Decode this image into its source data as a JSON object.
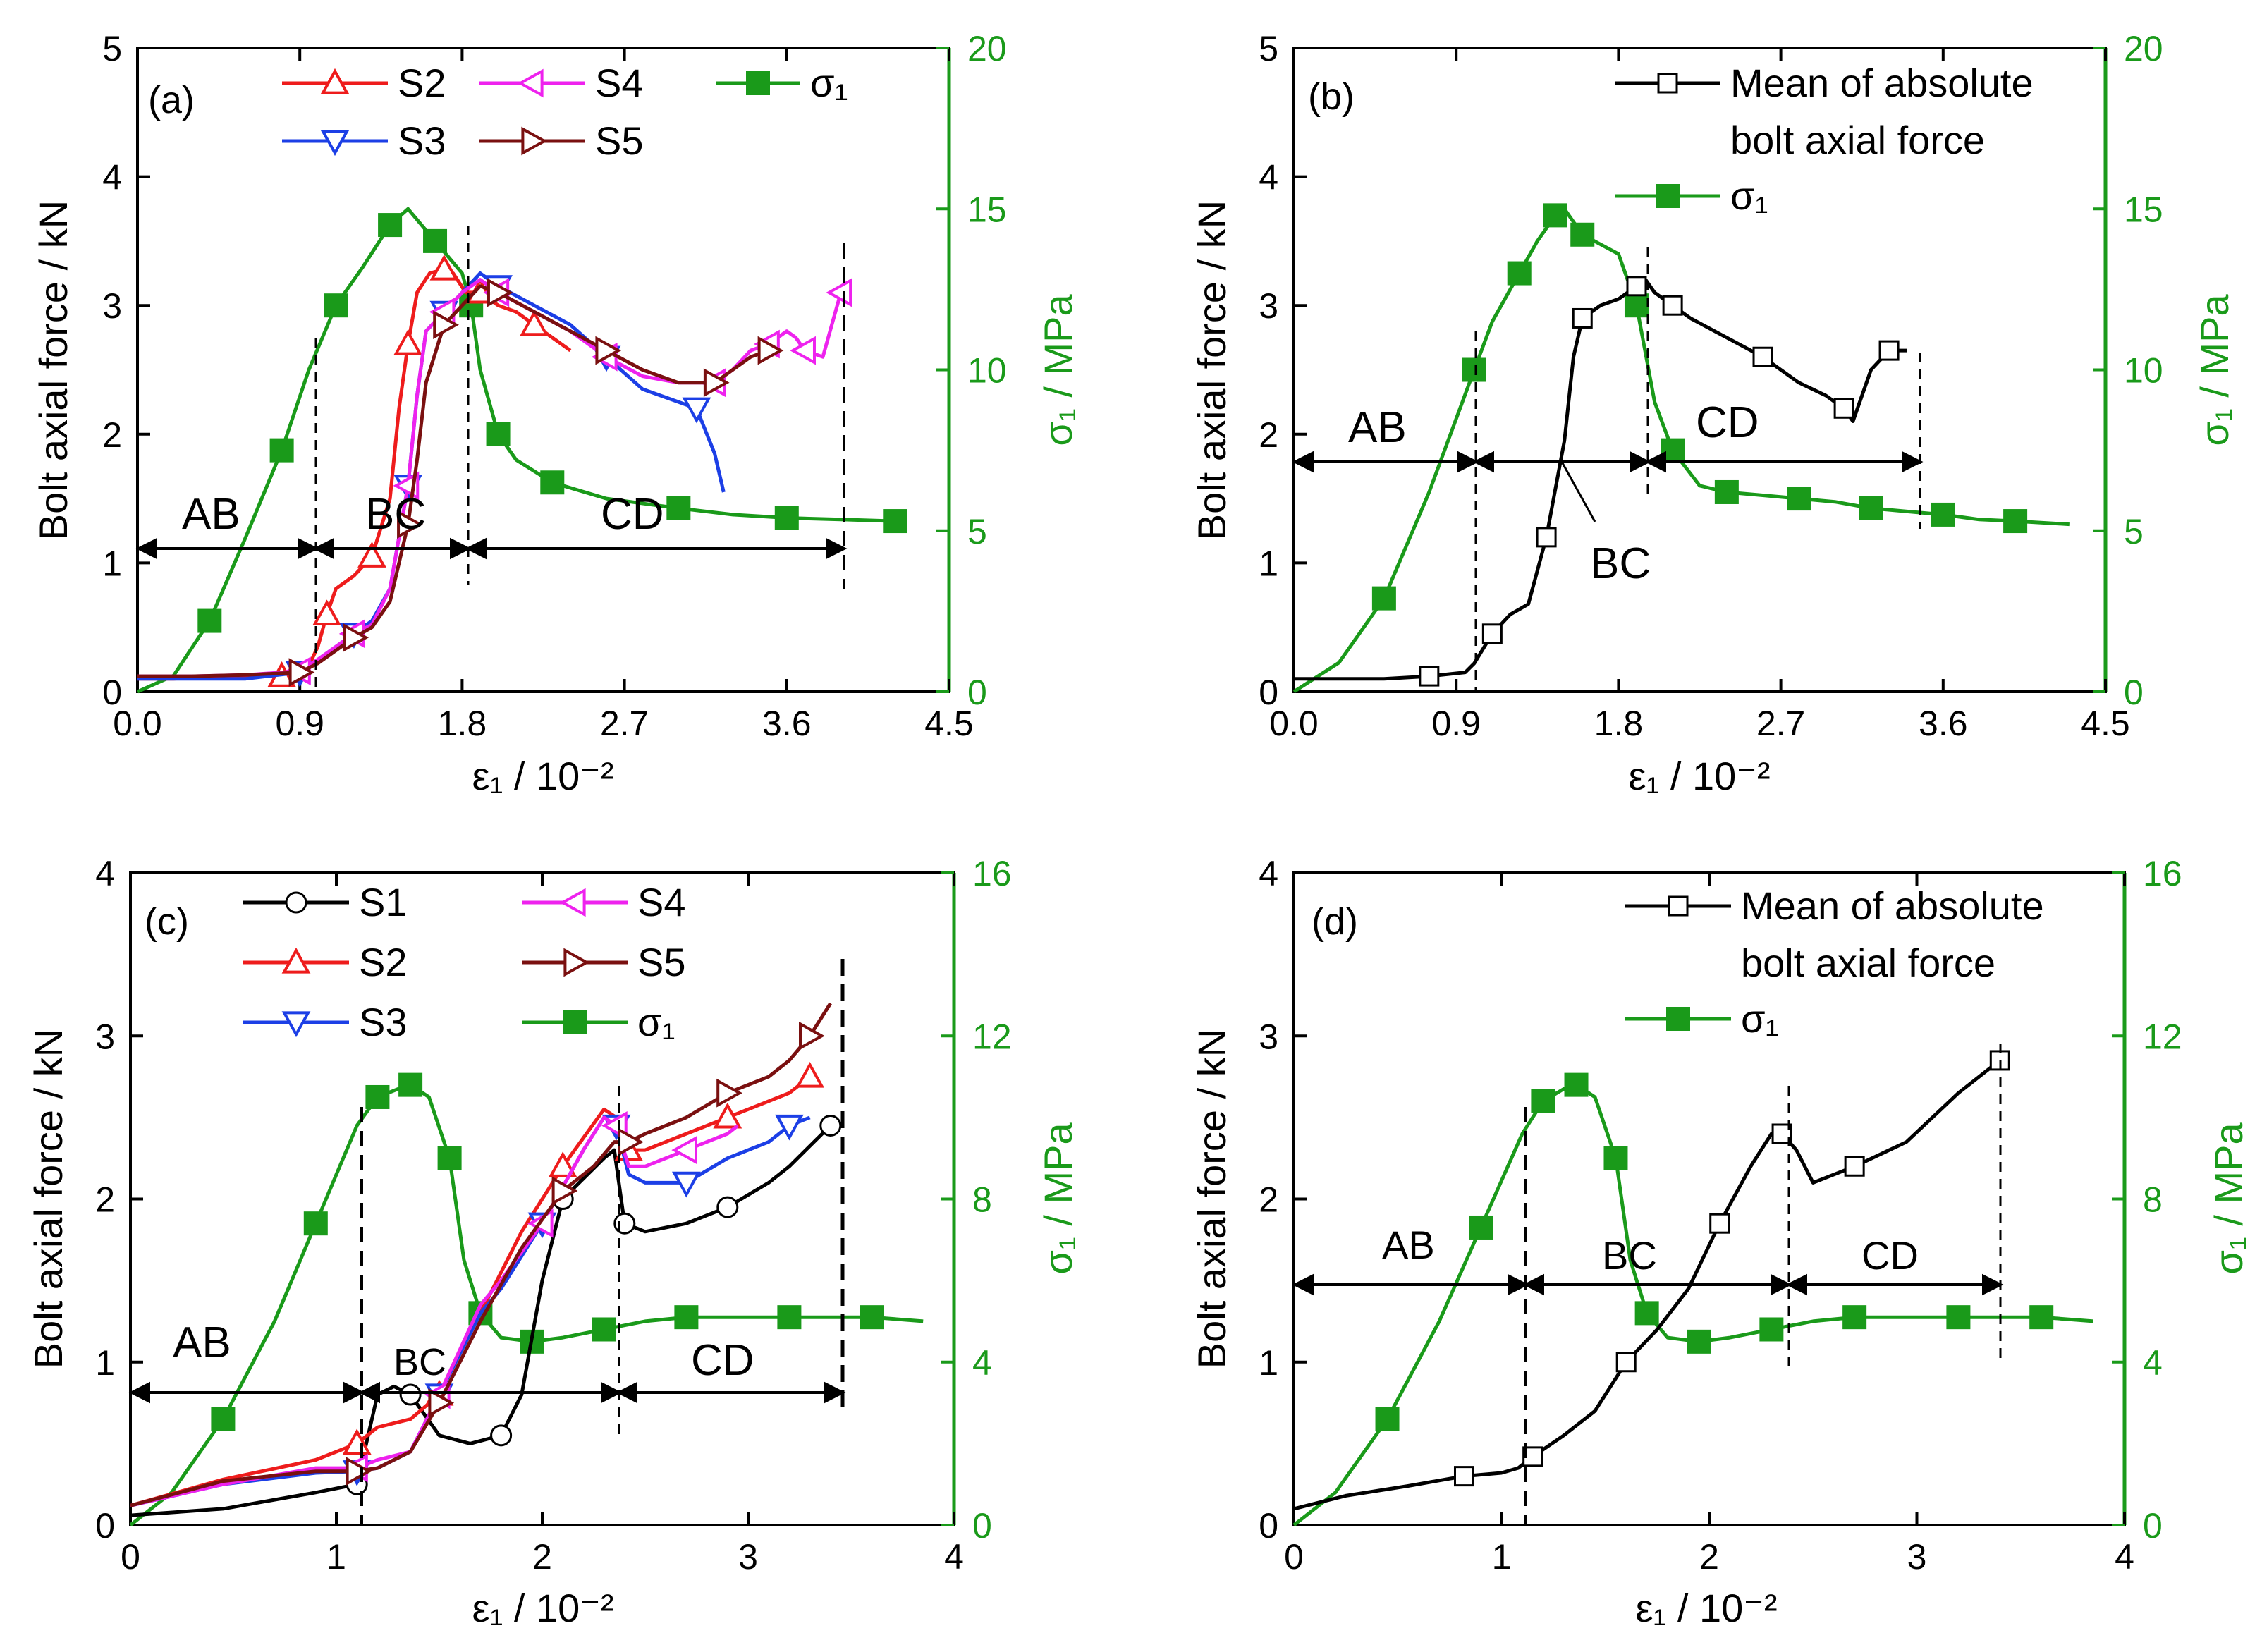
{
  "colors": {
    "S1": "#000000",
    "S2": "#ee1c1c",
    "S3": "#1c3fe6",
    "S4": "#ee22ee",
    "S5": "#7a1010",
    "sigma": "#1a9a1a",
    "mean": "#000000",
    "axis": "#000000",
    "right_axis": "#1a9a1a"
  },
  "chart_data": [
    {
      "id": "a",
      "type": "line",
      "panel_label": "(a)",
      "xlabel": "ε₁ / 10⁻²",
      "ylabel": "Bolt axial force / kN",
      "y2label": "σ₁ / MPa",
      "xlim": [
        0,
        4.5
      ],
      "ylim": [
        0,
        5
      ],
      "y2lim": [
        0,
        20
      ],
      "xticks": [
        "0.0",
        "0.9",
        "1.8",
        "2.7",
        "3.6",
        "4.5"
      ],
      "yticks": [
        "0",
        "1",
        "2",
        "3",
        "4",
        "5"
      ],
      "y2ticks": [
        "0",
        "5",
        "10",
        "15",
        "20"
      ],
      "legend": [
        "S2",
        "S3",
        "S4",
        "S5",
        "σ₁"
      ],
      "series": [
        {
          "name": "S2",
          "axis": "left",
          "marker": "triangle-up",
          "x": [
            0,
            0.2,
            0.5,
            0.8,
            0.95,
            1.0,
            1.05,
            1.1,
            1.2,
            1.3,
            1.4,
            1.45,
            1.5,
            1.55,
            1.62,
            1.7,
            1.75,
            1.82,
            1.9,
            2.0,
            2.1,
            2.2,
            2.3,
            2.4
          ],
          "y": [
            0.1,
            0.1,
            0.12,
            0.12,
            0.2,
            0.35,
            0.6,
            0.8,
            0.9,
            1.05,
            1.5,
            2.2,
            2.7,
            3.1,
            3.25,
            3.28,
            3.25,
            3.1,
            3.1,
            3.0,
            2.95,
            2.85,
            2.75,
            2.65
          ]
        },
        {
          "name": "S3",
          "axis": "left",
          "marker": "triangle-down",
          "x": [
            0,
            0.3,
            0.6,
            0.9,
            1.0,
            1.1,
            1.2,
            1.3,
            1.4,
            1.5,
            1.55,
            1.6,
            1.7,
            1.8,
            1.9,
            2.0,
            2.2,
            2.4,
            2.6,
            2.8,
            3.0,
            3.1,
            3.2,
            3.25
          ],
          "y": [
            0.1,
            0.1,
            0.1,
            0.15,
            0.25,
            0.35,
            0.45,
            0.55,
            0.8,
            1.6,
            2.3,
            2.8,
            2.95,
            3.1,
            3.25,
            3.15,
            3.0,
            2.85,
            2.6,
            2.35,
            2.25,
            2.2,
            1.85,
            1.55
          ]
        },
        {
          "name": "S4",
          "axis": "left",
          "marker": "triangle-left",
          "x": [
            0,
            0.3,
            0.6,
            0.9,
            1.0,
            1.1,
            1.2,
            1.3,
            1.4,
            1.5,
            1.55,
            1.6,
            1.7,
            1.8,
            1.9,
            2.0,
            2.2,
            2.4,
            2.6,
            2.8,
            3.0,
            3.2,
            3.3,
            3.4,
            3.5,
            3.6,
            3.65,
            3.7,
            3.8,
            3.85,
            3.9
          ],
          "y": [
            0.12,
            0.12,
            0.13,
            0.16,
            0.25,
            0.35,
            0.45,
            0.52,
            0.8,
            1.6,
            2.3,
            2.8,
            2.95,
            3.1,
            3.2,
            3.1,
            2.95,
            2.8,
            2.6,
            2.45,
            2.4,
            2.4,
            2.5,
            2.65,
            2.7,
            2.8,
            2.75,
            2.65,
            2.6,
            2.85,
            3.1
          ]
        },
        {
          "name": "S5",
          "axis": "left",
          "marker": "triangle-right",
          "x": [
            0,
            0.3,
            0.6,
            0.9,
            1.0,
            1.1,
            1.2,
            1.3,
            1.4,
            1.5,
            1.55,
            1.6,
            1.7,
            1.8,
            1.9,
            2.0,
            2.2,
            2.4,
            2.6,
            2.8,
            3.0,
            3.2,
            3.3,
            3.4,
            3.5
          ],
          "y": [
            0.12,
            0.12,
            0.13,
            0.15,
            0.22,
            0.32,
            0.42,
            0.5,
            0.7,
            1.3,
            1.8,
            2.4,
            2.85,
            3.0,
            3.15,
            3.1,
            2.95,
            2.8,
            2.65,
            2.5,
            2.4,
            2.4,
            2.5,
            2.6,
            2.65
          ]
        },
        {
          "name": "σ₁",
          "axis": "right",
          "marker": "square",
          "x": [
            0,
            0.2,
            0.4,
            0.6,
            0.8,
            0.95,
            1.1,
            1.25,
            1.4,
            1.5,
            1.65,
            1.8,
            1.85,
            1.9,
            2.0,
            2.1,
            2.3,
            2.6,
            3.0,
            3.3,
            3.6,
            3.9,
            4.2
          ],
          "y": [
            0,
            0.5,
            2.2,
            4.8,
            7.5,
            10,
            12,
            13.2,
            14.5,
            15,
            14,
            13,
            12,
            10,
            8,
            7.2,
            6.5,
            6.0,
            5.7,
            5.5,
            5.4,
            5.35,
            5.3
          ]
        }
      ],
      "annotations": [
        "AB",
        "BC",
        "CD"
      ]
    },
    {
      "id": "b",
      "type": "line",
      "panel_label": "(b)",
      "xlabel": "ε₁ / 10⁻²",
      "ylabel": "Bolt axial force / kN",
      "y2label": "σ₁ / MPa",
      "xlim": [
        0,
        4.5
      ],
      "ylim": [
        0,
        5
      ],
      "y2lim": [
        0,
        20
      ],
      "xticks": [
        "0.0",
        "0.9",
        "1.8",
        "2.7",
        "3.6",
        "4.5"
      ],
      "yticks": [
        "0",
        "1",
        "2",
        "3",
        "4",
        "5"
      ],
      "y2ticks": [
        "0",
        "5",
        "10",
        "15",
        "20"
      ],
      "legend": [
        "Mean of absolute bolt axial force",
        "σ₁"
      ],
      "legend_lines": [
        "Mean of absolute",
        "bolt axial force"
      ],
      "series": [
        {
          "name": "Mean",
          "axis": "left",
          "marker": "open-square",
          "x": [
            0,
            0.25,
            0.5,
            0.75,
            0.95,
            1.0,
            1.1,
            1.2,
            1.3,
            1.4,
            1.5,
            1.55,
            1.6,
            1.7,
            1.8,
            1.9,
            1.95,
            2.0,
            2.1,
            2.2,
            2.4,
            2.6,
            2.8,
            2.95,
            3.05,
            3.1,
            3.2,
            3.3,
            3.4
          ],
          "y": [
            0.1,
            0.1,
            0.1,
            0.12,
            0.15,
            0.22,
            0.45,
            0.6,
            0.68,
            1.2,
            1.95,
            2.6,
            2.9,
            3.0,
            3.05,
            3.15,
            3.2,
            3.1,
            3.0,
            2.9,
            2.75,
            2.6,
            2.4,
            2.3,
            2.2,
            2.1,
            2.5,
            2.65,
            2.65
          ]
        },
        {
          "name": "σ₁",
          "axis": "right",
          "marker": "square",
          "x": [
            0,
            0.25,
            0.5,
            0.75,
            1.0,
            1.1,
            1.25,
            1.35,
            1.45,
            1.5,
            1.6,
            1.8,
            1.9,
            2.0,
            2.1,
            2.25,
            2.4,
            2.6,
            2.8,
            3.0,
            3.2,
            3.4,
            3.6,
            3.8,
            4.0,
            4.3
          ],
          "y": [
            0,
            0.9,
            2.9,
            6.2,
            10,
            11.5,
            13,
            14,
            14.8,
            15,
            14.2,
            13.6,
            12,
            9,
            7.5,
            6.4,
            6.2,
            6.1,
            6.0,
            5.9,
            5.7,
            5.6,
            5.5,
            5.35,
            5.3,
            5.2
          ]
        }
      ],
      "annotations": [
        "AB",
        "BC",
        "CD"
      ]
    },
    {
      "id": "c",
      "type": "line",
      "panel_label": "(c)",
      "xlabel": "ε₁ / 10⁻²",
      "ylabel": "Bolt axial force / kN",
      "y2label": "σ₁ / MPa",
      "xlim": [
        0,
        4
      ],
      "ylim": [
        0,
        4
      ],
      "y2lim": [
        0,
        16
      ],
      "xticks": [
        "0",
        "1",
        "2",
        "3",
        "4"
      ],
      "yticks": [
        "0",
        "1",
        "2",
        "3",
        "4"
      ],
      "y2ticks": [
        "0",
        "4",
        "8",
        "12",
        "16"
      ],
      "legend": [
        "S1",
        "S2",
        "S3",
        "S4",
        "S5",
        "σ₁"
      ],
      "series": [
        {
          "name": "S1",
          "axis": "left",
          "marker": "circle",
          "x": [
            0,
            0.45,
            0.9,
            1.1,
            1.2,
            1.28,
            1.36,
            1.5,
            1.65,
            1.8,
            1.9,
            2.0,
            2.1,
            2.3,
            2.35,
            2.4,
            2.5,
            2.7,
            2.9,
            3.1,
            3.2,
            3.4
          ],
          "y": [
            0.06,
            0.1,
            0.2,
            0.25,
            0.8,
            0.85,
            0.8,
            0.55,
            0.5,
            0.55,
            0.8,
            1.5,
            2.0,
            2.25,
            2.3,
            1.85,
            1.8,
            1.85,
            1.95,
            2.1,
            2.2,
            2.45
          ]
        },
        {
          "name": "S2",
          "axis": "left",
          "marker": "triangle-up",
          "x": [
            0,
            0.45,
            0.9,
            1.1,
            1.2,
            1.36,
            1.5,
            1.7,
            1.9,
            2.1,
            2.3,
            2.36,
            2.42,
            2.5,
            2.7,
            2.9,
            3.1,
            3.2,
            3.3
          ],
          "y": [
            0.12,
            0.28,
            0.4,
            0.5,
            0.6,
            0.65,
            0.8,
            1.3,
            1.8,
            2.2,
            2.55,
            2.5,
            2.3,
            2.3,
            2.4,
            2.5,
            2.6,
            2.65,
            2.75
          ]
        },
        {
          "name": "S3",
          "axis": "left",
          "marker": "triangle-down",
          "x": [
            0,
            0.45,
            0.9,
            1.1,
            1.2,
            1.36,
            1.5,
            1.7,
            1.8,
            2.0,
            2.2,
            2.3,
            2.36,
            2.42,
            2.5,
            2.7,
            2.9,
            3.1,
            3.2,
            3.3
          ],
          "y": [
            0.12,
            0.25,
            0.32,
            0.33,
            0.35,
            0.45,
            0.8,
            1.3,
            1.45,
            1.85,
            2.3,
            2.5,
            2.45,
            2.15,
            2.1,
            2.1,
            2.25,
            2.35,
            2.45,
            2.5
          ]
        },
        {
          "name": "S4",
          "axis": "left",
          "marker": "triangle-left",
          "x": [
            0,
            0.45,
            0.9,
            1.1,
            1.2,
            1.36,
            1.5,
            1.7,
            1.8,
            2.0,
            2.2,
            2.3,
            2.36,
            2.42,
            2.5,
            2.7,
            2.9,
            2.95
          ],
          "y": [
            0.12,
            0.25,
            0.35,
            0.35,
            0.4,
            0.45,
            0.8,
            1.35,
            1.5,
            1.85,
            2.3,
            2.5,
            2.45,
            2.2,
            2.2,
            2.3,
            2.4,
            2.45
          ]
        },
        {
          "name": "S5",
          "axis": "left",
          "marker": "triangle-right",
          "x": [
            0,
            0.45,
            0.9,
            1.1,
            1.2,
            1.36,
            1.5,
            1.7,
            1.9,
            2.1,
            2.25,
            2.35,
            2.42,
            2.5,
            2.7,
            2.9,
            3.1,
            3.2,
            3.3,
            3.4
          ],
          "y": [
            0.12,
            0.27,
            0.33,
            0.33,
            0.35,
            0.45,
            0.75,
            1.25,
            1.7,
            2.05,
            2.2,
            2.35,
            2.35,
            2.4,
            2.5,
            2.65,
            2.75,
            2.85,
            3.0,
            3.2
          ]
        },
        {
          "name": "σ₁",
          "axis": "right",
          "marker": "square",
          "x": [
            0,
            0.2,
            0.45,
            0.7,
            0.9,
            1.1,
            1.2,
            1.3,
            1.36,
            1.45,
            1.55,
            1.62,
            1.7,
            1.8,
            1.95,
            2.1,
            2.3,
            2.5,
            2.7,
            3.0,
            3.2,
            3.4,
            3.6,
            3.85
          ],
          "y": [
            0,
            0.8,
            2.6,
            5.0,
            7.4,
            9.8,
            10.5,
            10.7,
            10.8,
            10.5,
            9.0,
            6.5,
            5.2,
            4.6,
            4.5,
            4.6,
            4.8,
            5.0,
            5.1,
            5.1,
            5.1,
            5.1,
            5.1,
            5.0
          ]
        }
      ],
      "annotations": [
        "AB",
        "BC",
        "CD"
      ]
    },
    {
      "id": "d",
      "type": "line",
      "panel_label": "(d)",
      "xlabel": "ε₁ / 10⁻²",
      "ylabel": "Bolt axial force / kN",
      "y2label": "σ₁ / MPa",
      "xlim": [
        0,
        4
      ],
      "ylim": [
        0,
        4
      ],
      "y2lim": [
        0,
        16
      ],
      "xticks": [
        "0",
        "1",
        "2",
        "3",
        "4"
      ],
      "yticks": [
        "0",
        "1",
        "2",
        "3",
        "4"
      ],
      "y2ticks": [
        "0",
        "4",
        "8",
        "12",
        "16"
      ],
      "legend": [
        "Mean of absolute bolt axial force",
        "σ₁"
      ],
      "legend_lines": [
        "Mean of absolute",
        "bolt axial force"
      ],
      "series": [
        {
          "name": "Mean",
          "axis": "left",
          "marker": "open-square",
          "x": [
            0,
            0.25,
            0.55,
            0.82,
            1.0,
            1.08,
            1.15,
            1.3,
            1.45,
            1.6,
            1.75,
            1.9,
            2.05,
            2.2,
            2.3,
            2.35,
            2.42,
            2.5,
            2.7,
            2.95,
            3.2,
            3.4
          ],
          "y": [
            0.1,
            0.18,
            0.24,
            0.3,
            0.32,
            0.35,
            0.42,
            0.55,
            0.7,
            1.0,
            1.2,
            1.45,
            1.85,
            2.2,
            2.4,
            2.4,
            2.3,
            2.1,
            2.2,
            2.35,
            2.65,
            2.85
          ]
        },
        {
          "name": "σ₁",
          "axis": "right",
          "marker": "square",
          "x": [
            0,
            0.2,
            0.45,
            0.7,
            0.9,
            1.1,
            1.2,
            1.3,
            1.36,
            1.45,
            1.55,
            1.62,
            1.7,
            1.8,
            1.95,
            2.1,
            2.3,
            2.5,
            2.7,
            3.0,
            3.2,
            3.4,
            3.6,
            3.85
          ],
          "y": [
            0,
            0.8,
            2.6,
            5.0,
            7.3,
            9.6,
            10.4,
            10.7,
            10.8,
            10.5,
            9.0,
            6.5,
            5.2,
            4.6,
            4.5,
            4.6,
            4.8,
            5.0,
            5.1,
            5.1,
            5.1,
            5.1,
            5.1,
            5.0
          ]
        }
      ],
      "annotations": [
        "AB",
        "BC",
        "CD"
      ]
    }
  ]
}
